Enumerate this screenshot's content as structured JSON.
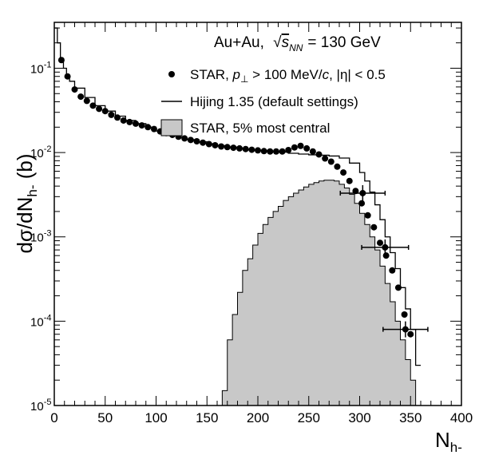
{
  "chart_data": {
    "type": "line",
    "title": "Au+Au,",
    "title_sqrt_symbol": "s",
    "title_sqrt_subscript": "NN",
    "title_energy": "= 130 GeV",
    "xlabel_main": "N",
    "xlabel_sub": "h-",
    "ylabel_prefix": "dσ/dN",
    "ylabel_sub": "h-",
    "ylabel_suffix": " (b)",
    "x_scale": "linear",
    "y_scale": "log",
    "xlim": [
      0,
      400
    ],
    "ylim": [
      1e-05,
      0.35
    ],
    "x_ticks": [
      0,
      50,
      100,
      150,
      200,
      250,
      300,
      350,
      400
    ],
    "y_ticks": [
      {
        "base": "10",
        "exp": "-5",
        "value": 1e-05
      },
      {
        "base": "10",
        "exp": "-4",
        "value": 0.0001
      },
      {
        "base": "10",
        "exp": "-3",
        "value": 0.001
      },
      {
        "base": "10",
        "exp": "-2",
        "value": 0.01
      },
      {
        "base": "10",
        "exp": "-1",
        "value": 0.1
      }
    ],
    "grid": false,
    "legend_position": "top-right",
    "legend": [
      {
        "marker": "circle",
        "text_pre": "STAR, ",
        "text_p": "p",
        "text_perp": "⊥",
        "text_mid": " > 100 MeV/",
        "text_c": "c",
        "text_post": ", |η| < 0.5"
      },
      {
        "marker": "line",
        "text": "Hijing 1.35 (default settings)"
      },
      {
        "marker": "box",
        "text": "STAR, 5% most central"
      }
    ],
    "colors": {
      "central_fill": "#c8c8c8",
      "line": "#000000",
      "points": "#000000"
    },
    "series": [
      {
        "name": "STAR, p⊥ > 100 MeV/c, |η| < 0.5",
        "kind": "points",
        "x": [
          7,
          13,
          20,
          26,
          32,
          38,
          44,
          50,
          56,
          62,
          68,
          74,
          80,
          86,
          92,
          98,
          104,
          110,
          116,
          122,
          128,
          134,
          140,
          146,
          152,
          158,
          164,
          170,
          176,
          182,
          188,
          194,
          200,
          206,
          212,
          218,
          224,
          230,
          236,
          242,
          248,
          254,
          260,
          266,
          272,
          278,
          284,
          290,
          296,
          302,
          308,
          314,
          320,
          326,
          332,
          338,
          344,
          350
        ],
        "y": [
          0.125,
          0.08,
          0.056,
          0.046,
          0.041,
          0.036,
          0.033,
          0.031,
          0.028,
          0.026,
          0.024,
          0.023,
          0.022,
          0.021,
          0.02,
          0.019,
          0.0178,
          0.017,
          0.0162,
          0.0154,
          0.0147,
          0.0141,
          0.0136,
          0.0131,
          0.0126,
          0.0122,
          0.0118,
          0.0116,
          0.0114,
          0.0112,
          0.011,
          0.0108,
          0.0106,
          0.0104,
          0.0103,
          0.0103,
          0.0103,
          0.0107,
          0.0115,
          0.012,
          0.0112,
          0.0103,
          0.0095,
          0.0085,
          0.0078,
          0.0068,
          0.0058,
          0.0046,
          0.0035,
          0.0025,
          0.0018,
          0.0013,
          0.00085,
          0.0006,
          0.0004,
          0.00025,
          0.00012,
          7e-05
        ],
        "xerr_points": [
          {
            "x": 303,
            "y": 0.0033,
            "xerr": 22
          },
          {
            "x": 325,
            "y": 0.00075,
            "xerr": 23
          },
          {
            "x": 345,
            "y": 8e-05,
            "xerr": 22
          }
        ]
      },
      {
        "name": "Hijing 1.35 (default settings)",
        "kind": "step",
        "x": [
          0,
          3,
          6,
          9,
          12,
          15,
          20,
          30,
          40,
          50,
          60,
          70,
          80,
          90,
          100,
          110,
          120,
          130,
          140,
          150,
          160,
          170,
          180,
          190,
          200,
          210,
          220,
          230,
          240,
          250,
          260,
          270,
          280,
          290,
          300,
          305,
          310,
          315,
          320,
          325,
          330,
          335,
          340,
          345,
          350,
          355
        ],
        "y": [
          0.3,
          0.2,
          0.13,
          0.1,
          0.08,
          0.07,
          0.058,
          0.045,
          0.036,
          0.031,
          0.027,
          0.024,
          0.022,
          0.02,
          0.018,
          0.0165,
          0.0152,
          0.0142,
          0.0134,
          0.0127,
          0.0121,
          0.0116,
          0.0112,
          0.0109,
          0.0106,
          0.0104,
          0.0101,
          0.0098,
          0.0096,
          0.0094,
          0.0093,
          0.0091,
          0.0086,
          0.0075,
          0.0058,
          0.0046,
          0.0034,
          0.0024,
          0.0016,
          0.001,
          0.00065,
          0.00042,
          0.00025,
          0.00014,
          8e-05,
          3e-05
        ]
      },
      {
        "name": "STAR, 5% most central",
        "kind": "filled-step",
        "x": [
          160,
          165,
          170,
          175,
          180,
          185,
          190,
          195,
          200,
          205,
          210,
          215,
          220,
          225,
          230,
          235,
          240,
          245,
          250,
          255,
          260,
          265,
          270,
          275,
          280,
          285,
          290,
          295,
          300,
          305,
          310,
          315,
          320,
          325,
          330,
          335,
          340,
          345,
          350,
          355
        ],
        "y": [
          1e-05,
          1.5e-05,
          6e-05,
          0.00012,
          0.00022,
          0.0004,
          0.00055,
          0.0008,
          0.0011,
          0.0014,
          0.0017,
          0.002,
          0.0023,
          0.0027,
          0.003,
          0.0033,
          0.0036,
          0.0039,
          0.0042,
          0.0044,
          0.0046,
          0.0047,
          0.0047,
          0.0046,
          0.0042,
          0.0038,
          0.0032,
          0.0025,
          0.0019,
          0.0014,
          0.001,
          0.0007,
          0.00045,
          0.00028,
          0.00017,
          0.0001,
          6e-05,
          3.5e-05,
          2e-05,
          1e-05
        ]
      }
    ]
  }
}
